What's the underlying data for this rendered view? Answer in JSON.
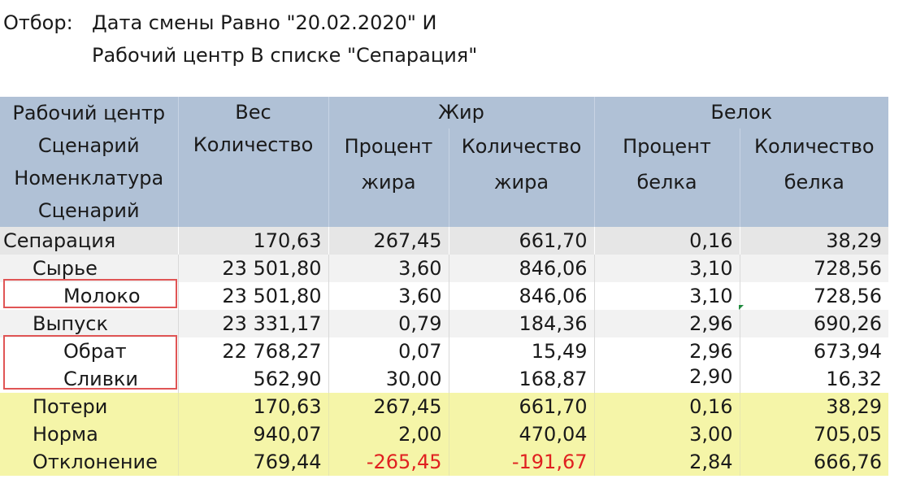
{
  "filter": {
    "label": "Отбор:",
    "line1": "Дата смены Равно \"20.02.2020\" И",
    "line2": "Рабочий центр В списке \"Сепарация\""
  },
  "header": {
    "col0": [
      "Рабочий центр",
      "Сценарий",
      "Номенклатура",
      "Сценарий"
    ],
    "ves_group": "Вес",
    "ves_qty": "Количество",
    "zhir_group": "Жир",
    "zhir_pct": [
      "Процент",
      "жира"
    ],
    "zhir_qty": [
      "Количество",
      "жира"
    ],
    "belok_group": "Белок",
    "belok_pct": [
      "Процент",
      "белка"
    ],
    "belok_qty": [
      "Количество",
      "белка"
    ]
  },
  "rows": [
    {
      "name": "Сепарация",
      "c1": "170,63",
      "c2": "267,45",
      "c3": "661,70",
      "c4": "0,16",
      "c5": "38,29"
    },
    {
      "name": "Сырье",
      "c1": "23 501,80",
      "c2": "3,60",
      "c3": "846,06",
      "c4": "3,10",
      "c5": "728,56"
    },
    {
      "name": "Молоко",
      "c1": "23 501,80",
      "c2": "3,60",
      "c3": "846,06",
      "c4": "3,10",
      "c5": "728,56"
    },
    {
      "name": "Выпуск",
      "c1": "23 331,17",
      "c2": "0,79",
      "c3": "184,36",
      "c4": "2,96",
      "c5": "690,26"
    },
    {
      "name": "Обрат",
      "c1": "22 768,27",
      "c2": "0,07",
      "c3": "15,49",
      "c4": "2,96",
      "c5": "673,94"
    },
    {
      "name": "Сливки",
      "c1": "562,90",
      "c2": "30,00",
      "c3": "168,87",
      "c4": "2,90",
      "c5": "16,32"
    },
    {
      "name": "Потери",
      "c1": "170,63",
      "c2": "267,45",
      "c3": "661,70",
      "c4": "0,16",
      "c5": "38,29"
    },
    {
      "name": "Норма",
      "c1": "940,07",
      "c2": "2,00",
      "c3": "470,04",
      "c4": "3,00",
      "c5": "705,05"
    },
    {
      "name": "Отклонение",
      "c1": "769,44",
      "c2": "-265,45",
      "c3": "-191,67",
      "c4": "2,84",
      "c5": "666,76"
    }
  ],
  "colors": {
    "header_bg": "#b0c1d6",
    "yellow_row_bg": "#f5f5a8",
    "negative": "#e02020",
    "highlight_border": "#e05555"
  }
}
